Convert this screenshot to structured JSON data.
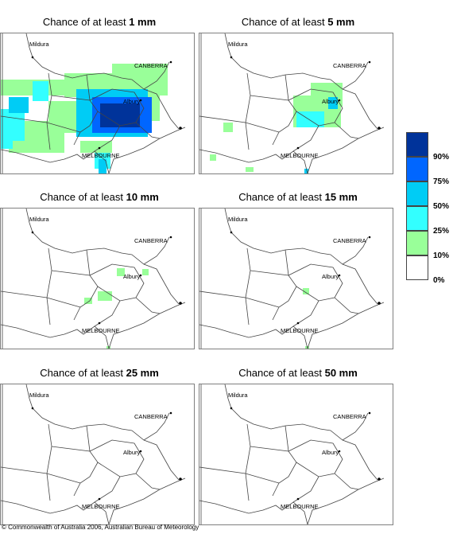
{
  "panels": [
    {
      "prefix": "Chance of at least ",
      "amount": "1 mm"
    },
    {
      "prefix": "Chance of at least ",
      "amount": "5 mm"
    },
    {
      "prefix": "Chance of at least ",
      "amount": "10 mm"
    },
    {
      "prefix": "Chance of at least ",
      "amount": "15 mm"
    },
    {
      "prefix": "Chance of at least ",
      "amount": "25 mm"
    },
    {
      "prefix": "Chance of at least ",
      "amount": "50 mm"
    }
  ],
  "places": {
    "mildura": "Mildura",
    "canberra": "CANBERRA",
    "albury": "Albury",
    "melbourne": "MELBOURNE"
  },
  "legend": {
    "labels": [
      "90%",
      "75%",
      "50%",
      "25%",
      "10%",
      "0%"
    ],
    "colors": [
      "#00339a",
      "#0066ff",
      "#00ccf5",
      "#33ffff",
      "#99ff99",
      "#ffffff"
    ]
  },
  "footer": "© Commonwealth of Australia 2006, Australian Bureau of Meteorology"
}
